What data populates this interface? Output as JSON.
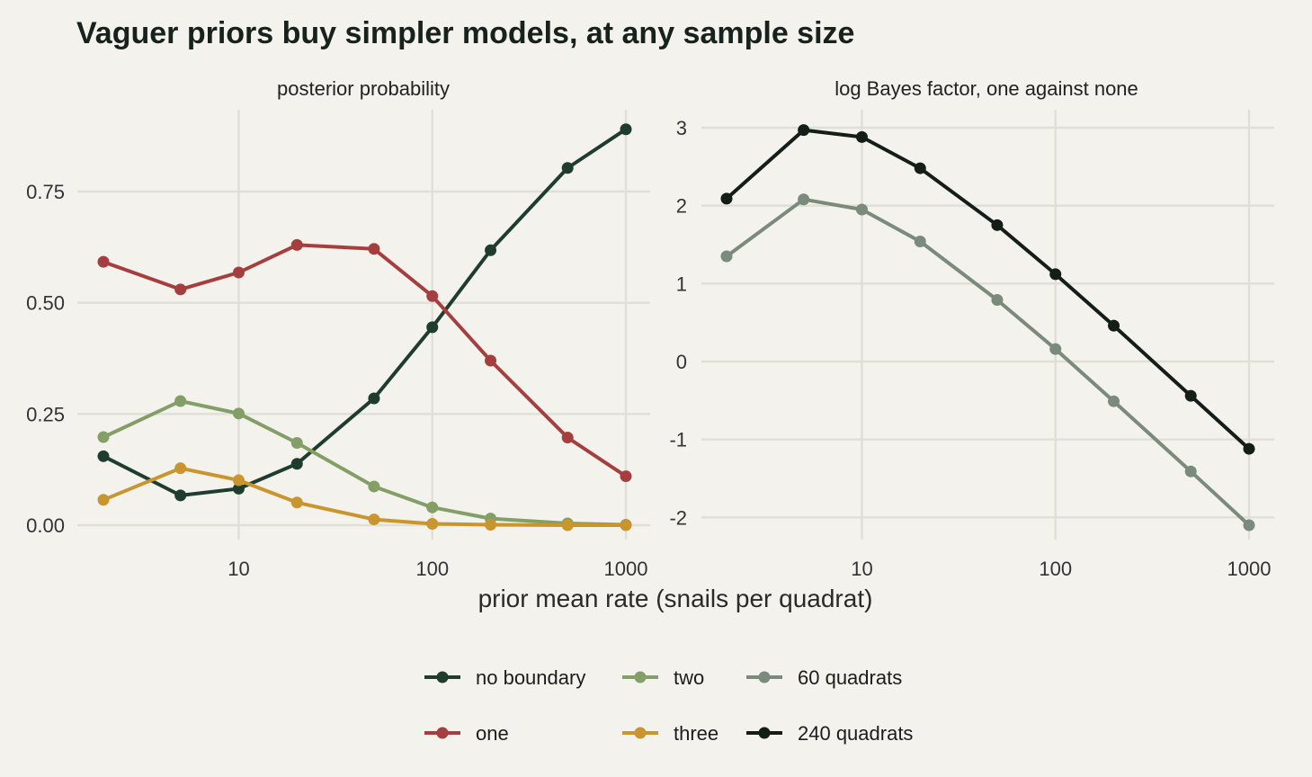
{
  "title": "Vaguer priors buy simpler models, at any sample size",
  "xlabel": "prior mean rate (snails per quadrat)",
  "chart_data": [
    {
      "type": "line",
      "panel_title": "posterior probability",
      "x_scale": "log",
      "x": [
        2,
        5,
        10,
        20,
        50,
        100,
        200,
        500,
        1000
      ],
      "x_ticks": [
        "10",
        "100",
        "1000"
      ],
      "y_ticks": [
        "0.00",
        "0.25",
        "0.50",
        "0.75"
      ],
      "ylim": [
        0,
        0.9
      ],
      "grid": true,
      "series": [
        {
          "name": "no boundary",
          "color": "#1f3d2f",
          "values": [
            0.155,
            0.067,
            0.082,
            0.138,
            0.285,
            0.445,
            0.618,
            0.803,
            0.89
          ]
        },
        {
          "name": "one",
          "color": "#a53f3f",
          "values": [
            0.592,
            0.53,
            0.568,
            0.63,
            0.621,
            0.515,
            0.37,
            0.197,
            0.11
          ]
        },
        {
          "name": "two",
          "color": "#849e68",
          "values": [
            0.198,
            0.279,
            0.251,
            0.185,
            0.087,
            0.04,
            0.015,
            0.004,
            0.001
          ]
        },
        {
          "name": "three",
          "color": "#c9952f",
          "values": [
            0.057,
            0.128,
            0.101,
            0.051,
            0.013,
            0.003,
            0.001,
            0.0,
            0.0
          ]
        }
      ]
    },
    {
      "type": "line",
      "panel_title": "log Bayes factor, one against none",
      "x_scale": "log",
      "x": [
        2,
        5,
        10,
        20,
        50,
        100,
        200,
        500,
        1000
      ],
      "x_ticks": [
        "10",
        "100",
        "1000"
      ],
      "y_ticks": [
        "-2",
        "-1",
        "0",
        "1",
        "2",
        "3"
      ],
      "ylim": [
        -2.2,
        3.1
      ],
      "grid": true,
      "series": [
        {
          "name": "60 quadrats",
          "color": "#7a8a7c",
          "values": [
            1.35,
            2.08,
            1.95,
            1.54,
            0.79,
            0.16,
            -0.51,
            -1.41,
            -2.1
          ]
        },
        {
          "name": "240 quadrats",
          "color": "#151d17",
          "values": [
            2.09,
            2.97,
            2.88,
            2.48,
            1.75,
            1.12,
            0.46,
            -0.44,
            -1.12
          ]
        }
      ]
    }
  ],
  "legend": {
    "placement": "bottom",
    "items": [
      {
        "label": "no boundary",
        "color": "#1f3d2f"
      },
      {
        "label": "two",
        "color": "#849e68"
      },
      {
        "label": "60 quadrats",
        "color": "#7a8a7c"
      },
      {
        "label": "one",
        "color": "#a53f3f"
      },
      {
        "label": "three",
        "color": "#c9952f"
      },
      {
        "label": "240 quadrats",
        "color": "#151d17"
      }
    ]
  }
}
